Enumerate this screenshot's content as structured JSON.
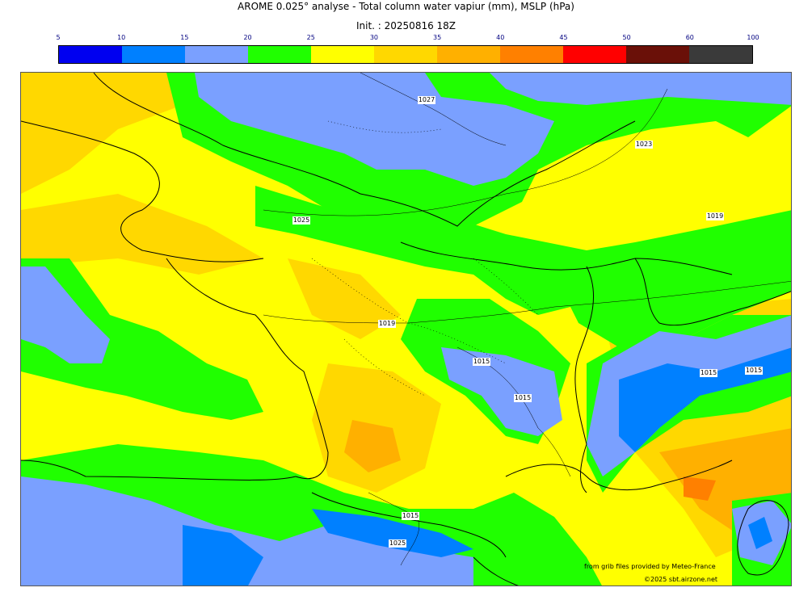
{
  "header": {
    "title": "AROME 0.025° analyse - Total column water vapiur (mm), MSLP (hPa)",
    "init": "Init. : 20250816 18Z"
  },
  "colorbar": {
    "ticks": [
      "5",
      "10",
      "15",
      "20",
      "25",
      "30",
      "35",
      "40",
      "45",
      "50",
      "60",
      "100"
    ],
    "colors": [
      "#0000f0",
      "#0080ff",
      "#7aa0ff",
      "#20ff00",
      "#ffff00",
      "#ffd800",
      "#ffb000",
      "#ff8000",
      "#ff0000",
      "#6a1008",
      "#3a3a3a"
    ]
  },
  "isobars": {
    "labels": [
      "1027",
      "1025",
      "1023",
      "1019",
      "1019",
      "1015",
      "1015",
      "1015",
      "1015",
      "1015",
      "1025",
      "1015"
    ]
  },
  "credits": {
    "source": "from grib files provided by Meteo-France",
    "copyright": "©2025 sbt.airzone.net"
  }
}
